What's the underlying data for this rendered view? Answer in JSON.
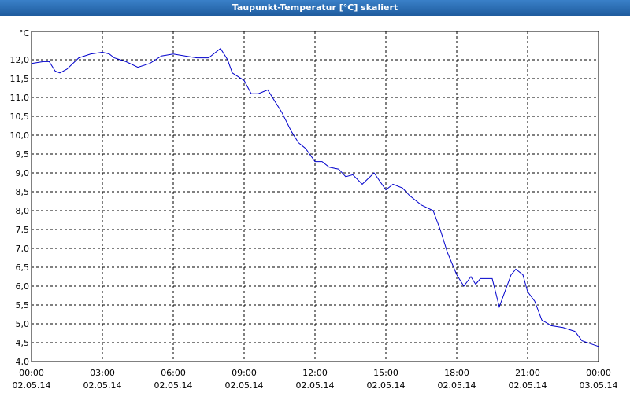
{
  "chart_data": {
    "type": "line",
    "title": "Taupunkt-Temperatur [°C] skaliert",
    "y_label": "°C",
    "x": [
      0,
      0.5,
      0.75,
      1.0,
      1.2,
      1.5,
      2.0,
      2.5,
      3.0,
      3.3,
      3.5,
      4.0,
      4.5,
      5.0,
      5.5,
      6.0,
      6.5,
      7.0,
      7.5,
      8.0,
      8.3,
      8.5,
      9.0,
      9.3,
      9.6,
      10.0,
      10.3,
      10.6,
      11.0,
      11.3,
      11.6,
      12.0,
      12.3,
      12.6,
      13.0,
      13.3,
      13.6,
      14.0,
      14.5,
      15.0,
      15.3,
      15.7,
      16.0,
      16.5,
      17.0,
      17.3,
      17.6,
      18.0,
      18.3,
      18.6,
      18.8,
      19.0,
      19.5,
      19.8,
      20.3,
      20.5,
      20.8,
      21.0,
      21.3,
      21.6,
      22.0,
      22.5,
      23.0,
      23.3,
      24.0
    ],
    "series": [
      {
        "name": "Taupunkt-Temperatur",
        "color": "#0000cc",
        "values": [
          11.9,
          11.95,
          11.95,
          11.7,
          11.65,
          11.75,
          12.05,
          12.15,
          12.2,
          12.15,
          12.05,
          11.95,
          11.8,
          11.9,
          12.1,
          12.15,
          12.1,
          12.05,
          12.05,
          12.3,
          12.0,
          11.65,
          11.45,
          11.1,
          11.1,
          11.2,
          10.9,
          10.6,
          10.1,
          9.8,
          9.65,
          9.3,
          9.3,
          9.15,
          9.1,
          8.9,
          8.95,
          8.7,
          9.0,
          8.55,
          8.7,
          8.6,
          8.4,
          8.15,
          8.0,
          7.5,
          6.9,
          6.3,
          6.0,
          6.25,
          6.05,
          6.2,
          6.2,
          5.45,
          6.3,
          6.45,
          6.3,
          5.85,
          5.6,
          5.1,
          4.95,
          4.9,
          4.8,
          4.55,
          4.4
        ]
      }
    ],
    "xlim": [
      0,
      24
    ],
    "xticks": [
      {
        "value": 0,
        "label": "00:00",
        "date": "02.05.14"
      },
      {
        "value": 3,
        "label": "03:00",
        "date": "02.05.14"
      },
      {
        "value": 6,
        "label": "06:00",
        "date": "02.05.14"
      },
      {
        "value": 9,
        "label": "09:00",
        "date": "02.05.14"
      },
      {
        "value": 12,
        "label": "12:00",
        "date": "02.05.14"
      },
      {
        "value": 15,
        "label": "15:00",
        "date": "02.05.14"
      },
      {
        "value": 18,
        "label": "18:00",
        "date": "02.05.14"
      },
      {
        "value": 21,
        "label": "21:00",
        "date": "02.05.14"
      },
      {
        "value": 24,
        "label": "00:00",
        "date": "03.05.14"
      }
    ],
    "ylim": [
      4,
      12.75
    ],
    "yticks": [
      {
        "value": 4,
        "label": "4,0"
      },
      {
        "value": 4.5,
        "label": "4,5"
      },
      {
        "value": 5,
        "label": "5,0"
      },
      {
        "value": 5.5,
        "label": "5,5"
      },
      {
        "value": 6,
        "label": "6,0"
      },
      {
        "value": 6.5,
        "label": "6,5"
      },
      {
        "value": 7,
        "label": "7,0"
      },
      {
        "value": 7.5,
        "label": "7,5"
      },
      {
        "value": 8,
        "label": "8,0"
      },
      {
        "value": 8.5,
        "label": "8,5"
      },
      {
        "value": 9,
        "label": "9,0"
      },
      {
        "value": 9.5,
        "label": "9,5"
      },
      {
        "value": 10,
        "label": "10,0"
      },
      {
        "value": 10.5,
        "label": "10,5"
      },
      {
        "value": 11,
        "label": "11,0"
      },
      {
        "value": 11.5,
        "label": "11,5"
      },
      {
        "value": 12,
        "label": "12,0"
      }
    ],
    "grid": true
  }
}
